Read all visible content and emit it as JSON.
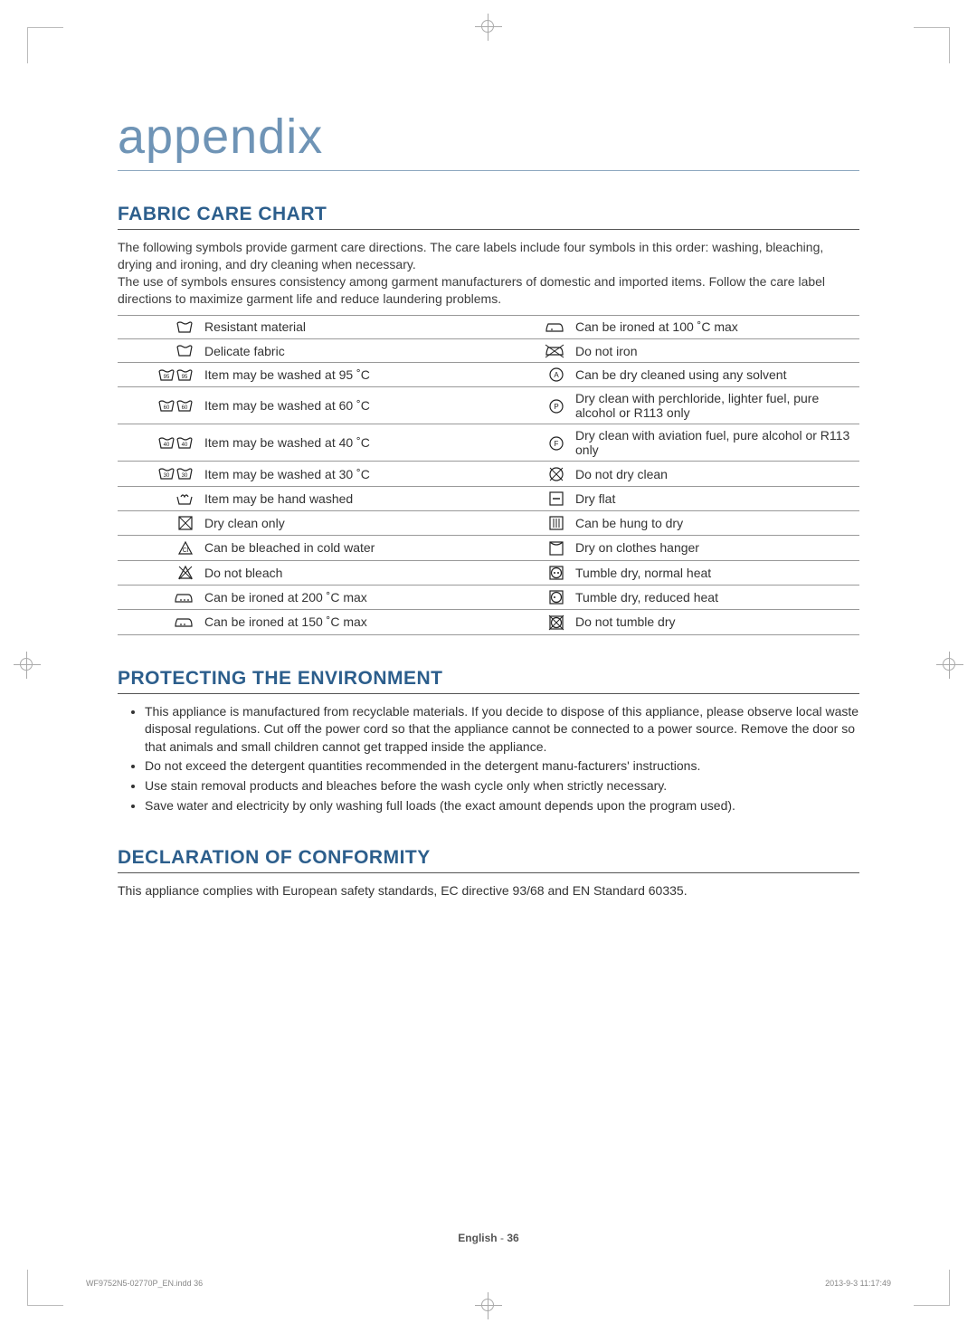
{
  "title": "appendix",
  "title_color": "#6f94b6",
  "accent_color": "#2c5e8c",
  "sections": {
    "fabric": {
      "heading": "FABRIC CARE CHART",
      "intro": "The following symbols provide garment care directions. The care labels include four symbols in this order: washing, bleaching, drying and ironing, and dry cleaning when necessary.\nThe use of symbols ensures consistency among garment manufacturers of domestic and imported items. Follow the care label directions to maximize garment life and reduce laundering problems.",
      "rows_left": [
        {
          "icon": "wash-plain",
          "label": "Resistant material"
        },
        {
          "icon": "wash-plain",
          "label": "Delicate fabric"
        },
        {
          "icon": "wash-95",
          "label": "Item may be washed at 95 ˚C"
        },
        {
          "icon": "wash-60",
          "label": "Item may be washed at 60 ˚C"
        },
        {
          "icon": "wash-40",
          "label": "Item may be washed at 40 ˚C"
        },
        {
          "icon": "wash-30",
          "label": "Item may be washed at 30 ˚C"
        },
        {
          "icon": "hand-wash",
          "label": "Item may be hand washed"
        },
        {
          "icon": "dryclean-only",
          "label": "Dry clean only"
        },
        {
          "icon": "bleach-ok",
          "label": "Can be bleached in cold water"
        },
        {
          "icon": "no-bleach",
          "label": "Do not bleach"
        },
        {
          "icon": "iron-200",
          "label": "Can be ironed at 200 ˚C max"
        },
        {
          "icon": "iron-150",
          "label": "Can be ironed at 150 ˚C max"
        }
      ],
      "rows_right": [
        {
          "icon": "iron-100",
          "label": "Can be ironed at 100 ˚C max"
        },
        {
          "icon": "no-iron",
          "label": "Do not iron"
        },
        {
          "icon": "dryclean-a",
          "label": "Can be dry cleaned using any solvent"
        },
        {
          "icon": "dryclean-p",
          "label": "Dry clean with perchloride, lighter fuel, pure alcohol or R113 only"
        },
        {
          "icon": "dryclean-f",
          "label": "Dry clean with aviation fuel, pure alcohol or R113 only"
        },
        {
          "icon": "no-dryclean",
          "label": "Do not dry clean"
        },
        {
          "icon": "dry-flat",
          "label": "Dry flat"
        },
        {
          "icon": "dry-hang",
          "label": "Can be hung to dry"
        },
        {
          "icon": "dry-hanger",
          "label": "Dry on clothes hanger"
        },
        {
          "icon": "tumble-normal",
          "label": "Tumble dry, normal heat"
        },
        {
          "icon": "tumble-reduced",
          "label": "Tumble dry, reduced heat"
        },
        {
          "icon": "no-tumble",
          "label": "Do not tumble dry"
        }
      ]
    },
    "env": {
      "heading": "PROTECTING THE ENVIRONMENT",
      "bullets": [
        "This appliance is manufactured from recyclable materials. If you decide to dispose of this appliance, please observe local waste disposal regulations. Cut off the power cord so that the appliance cannot be connected to a power source. Remove the door so that animals and small children cannot get trapped inside the appliance.",
        "Do not exceed the detergent quantities recommended in the detergent manu-facturers' instructions.",
        "Use stain removal products and bleaches before the wash cycle only when strictly necessary.",
        "Save water and electricity by only washing full loads (the exact amount depends upon the program used)."
      ]
    },
    "decl": {
      "heading": "DECLARATION OF CONFORMITY",
      "text": "This appliance complies with European safety standards, EC directive 93/68 and EN Standard 60335."
    }
  },
  "footer": {
    "center_lang": "English",
    "center_sep": "-",
    "center_page": "36",
    "left": "WF9752N5-02770P_EN.indd   36",
    "right": "2013-9-3   11:17:49"
  }
}
